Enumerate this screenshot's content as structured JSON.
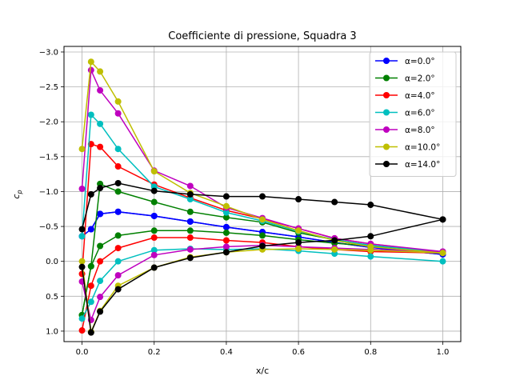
{
  "chart_data": {
    "type": "line",
    "title": "Coefficiente di pressione, Squadra 3",
    "xlabel": "x/c",
    "ylabel": "c_p",
    "xlim": [
      -0.05,
      1.05
    ],
    "ylim": [
      1.15,
      -3.08
    ],
    "y_inverted": true,
    "grid": true,
    "legend_position": "top-right",
    "x_ticks": [
      0.0,
      0.2,
      0.4,
      0.6,
      0.8,
      1.0
    ],
    "x_tick_labels": [
      "0.0",
      "0.2",
      "0.4",
      "0.6",
      "0.8",
      "1.0"
    ],
    "y_ticks": [
      -3.0,
      -2.5,
      -2.0,
      -1.5,
      -1.0,
      -0.5,
      0.0,
      0.5,
      1.0
    ],
    "y_tick_labels": [
      "−3.0",
      "−2.5",
      "−2.0",
      "−1.5",
      "−1.0",
      "−0.5",
      "0.0",
      "0.5",
      "1.0"
    ],
    "series": [
      {
        "name": "α=0.0°",
        "color": "#0000ff",
        "upper": {
          "x": [
            0.0,
            0.025,
            0.05,
            0.1,
            0.2,
            0.3,
            0.4,
            0.5,
            0.6,
            0.7,
            0.8,
            1.0
          ],
          "y": [
            -0.36,
            -0.46,
            -0.68,
            -0.71,
            -0.65,
            -0.57,
            -0.49,
            -0.42,
            -0.35,
            -0.27,
            -0.2,
            -0.1
          ]
        },
        "lower": {
          "x": [
            0.0,
            0.025,
            0.05,
            0.1,
            0.2,
            0.3,
            0.4,
            0.5,
            0.6,
            0.7,
            0.8,
            1.0
          ],
          "y": [
            -0.36,
            -0.46,
            -0.68,
            -0.71,
            -0.65,
            -0.57,
            -0.49,
            -0.42,
            -0.35,
            -0.27,
            -0.2,
            -0.1
          ]
        }
      },
      {
        "name": "α=2.0°",
        "color": "#008000",
        "upper": {
          "x": [
            0.0,
            0.025,
            0.05,
            0.1,
            0.2,
            0.3,
            0.4,
            0.5,
            0.6,
            0.7,
            0.8,
            1.0
          ],
          "y": [
            0.77,
            0.07,
            -1.11,
            -1.0,
            -0.85,
            -0.71,
            -0.63,
            -0.56,
            -0.41,
            -0.31,
            -0.22,
            -0.12
          ]
        },
        "lower": {
          "x": [
            0.0,
            0.025,
            0.05,
            0.1,
            0.2,
            0.3,
            0.4,
            0.5,
            0.6,
            0.7,
            0.8,
            1.0
          ],
          "y": [
            0.77,
            0.07,
            -0.22,
            -0.37,
            -0.44,
            -0.44,
            -0.41,
            -0.37,
            -0.31,
            -0.26,
            -0.22,
            -0.12
          ]
        }
      },
      {
        "name": "α=4.0°",
        "color": "#ff0000",
        "upper": {
          "x": [
            0.0,
            0.025,
            0.05,
            0.1,
            0.2,
            0.3,
            0.4,
            0.5,
            0.6,
            0.7,
            0.8,
            1.0
          ],
          "y": [
            0.18,
            -1.68,
            -1.64,
            -1.36,
            -1.1,
            -0.91,
            -0.73,
            -0.61,
            -0.47,
            -0.33,
            -0.25,
            -0.13
          ]
        },
        "lower": {
          "x": [
            0.0,
            0.025,
            0.05,
            0.1,
            0.2,
            0.3,
            0.4,
            0.5,
            0.6,
            0.7,
            0.8,
            1.0
          ],
          "y": [
            0.99,
            0.35,
            0.0,
            -0.19,
            -0.34,
            -0.34,
            -0.3,
            -0.27,
            -0.21,
            -0.17,
            -0.14,
            -0.12
          ]
        }
      },
      {
        "name": "α=6.0°",
        "color": "#00bfbf",
        "upper": {
          "x": [
            0.0,
            0.025,
            0.05,
            0.1,
            0.2,
            0.3,
            0.4,
            0.5,
            0.6,
            0.7,
            0.8,
            1.0
          ],
          "y": [
            -0.36,
            -2.1,
            -1.97,
            -1.61,
            -1.07,
            -0.89,
            -0.7,
            -0.58,
            -0.43,
            -0.31,
            -0.23,
            -0.13
          ]
        },
        "lower": {
          "x": [
            0.0,
            0.025,
            0.05,
            0.1,
            0.2,
            0.3,
            0.4,
            0.5,
            0.6,
            0.7,
            0.8,
            1.0
          ],
          "y": [
            0.82,
            0.58,
            0.28,
            0.0,
            -0.16,
            -0.18,
            -0.17,
            -0.18,
            -0.15,
            -0.11,
            -0.07,
            0.0
          ]
        }
      },
      {
        "name": "α=8.0°",
        "color": "#bf00bf",
        "upper": {
          "x": [
            0.0,
            0.025,
            0.05,
            0.1,
            0.2,
            0.3,
            0.4,
            0.5,
            0.6,
            0.7,
            0.8,
            1.0
          ],
          "y": [
            -1.04,
            -2.74,
            -2.45,
            -2.12,
            -1.3,
            -1.08,
            -0.77,
            -0.62,
            -0.47,
            -0.33,
            -0.25,
            -0.14
          ]
        },
        "lower": {
          "x": [
            0.0,
            0.025,
            0.05,
            0.1,
            0.2,
            0.3,
            0.4,
            0.5,
            0.6,
            0.7,
            0.8,
            1.0
          ],
          "y": [
            0.29,
            0.84,
            0.51,
            0.2,
            -0.09,
            -0.17,
            -0.21,
            -0.23,
            -0.21,
            -0.19,
            -0.17,
            -0.14
          ]
        }
      },
      {
        "name": "α=10.0°",
        "color": "#bfbf00",
        "upper": {
          "x": [
            0.0,
            0.025,
            0.05,
            0.1,
            0.2,
            0.3,
            0.4,
            0.5,
            0.6,
            0.7,
            0.8,
            1.0
          ],
          "y": [
            -1.61,
            -2.86,
            -2.72,
            -2.29,
            -1.29,
            -0.98,
            -0.79,
            -0.6,
            -0.44,
            -0.3,
            -0.21,
            -0.12
          ]
        },
        "lower": {
          "x": [
            0.0,
            0.025,
            0.05,
            0.1,
            0.2,
            0.3,
            0.4,
            0.5,
            0.6,
            0.7,
            0.8,
            1.0
          ],
          "y": [
            0.0,
            1.01,
            0.71,
            0.35,
            0.09,
            -0.06,
            -0.13,
            -0.17,
            -0.18,
            -0.17,
            -0.16,
            -0.12
          ]
        }
      },
      {
        "name": "α=14.0°",
        "color": "#000000",
        "upper": {
          "x": [
            0.0,
            0.025,
            0.05,
            0.1,
            0.2,
            0.3,
            0.4,
            0.5,
            0.6,
            0.7,
            0.8,
            1.0
          ],
          "y": [
            -0.46,
            -0.96,
            -1.05,
            -1.12,
            -1.01,
            -0.96,
            -0.93,
            -0.93,
            -0.89,
            -0.85,
            -0.81,
            -0.6
          ]
        },
        "lower": {
          "x": [
            0.0,
            0.025,
            0.05,
            0.1,
            0.2,
            0.3,
            0.4,
            0.5,
            0.6,
            0.7,
            0.8,
            1.0
          ],
          "y": [
            0.08,
            1.02,
            0.72,
            0.4,
            0.09,
            -0.05,
            -0.13,
            -0.22,
            -0.27,
            -0.3,
            -0.36,
            -0.6
          ]
        }
      }
    ]
  }
}
